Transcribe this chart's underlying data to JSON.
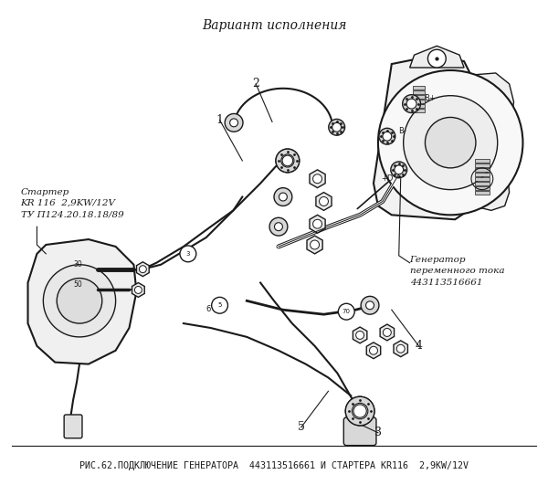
{
  "title": "Вариант исполнения",
  "caption": "РИС.62.ПОДКЛЮЧЕНИЕ ГЕНЕРАТОРА  443113516661 И СТАРТЕРА KR116  2,9KW/12V",
  "label_starter": "Стартер\nKR 116  2,9KW/12V\nТУ П124.20.18.18/89",
  "label_generator": "Генератор\nпеременного тока\n443113516661",
  "bg_color": "#ffffff",
  "fg_color": "#1a1a1a",
  "fig_width": 6.0,
  "fig_height": 5.31,
  "dpi": 100,
  "title_fontsize": 10,
  "caption_fontsize": 7.2,
  "label_fontsize": 7.5
}
